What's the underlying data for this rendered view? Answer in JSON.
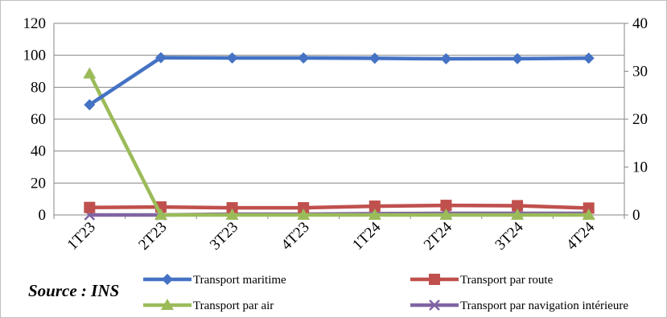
{
  "source_note": "Source : INS",
  "chart_data": {
    "type": "line",
    "title": "",
    "xlabel": "",
    "ylabel": "",
    "categories": [
      "1T23",
      "2T23",
      "3T23",
      "4T23",
      "1T24",
      "2T24",
      "3T24",
      "4T24"
    ],
    "ylim": [
      0,
      120
    ],
    "y_ticks": [
      "0",
      "20",
      "40",
      "60",
      "80",
      "100",
      "120"
    ],
    "y2lim": [
      0,
      40
    ],
    "y2_ticks": [
      "0",
      "10",
      "20",
      "30",
      "40"
    ],
    "grid": "horizontal",
    "legend_position": "bottom",
    "series": [
      {
        "name": "Transport maritime",
        "axis": "left",
        "color": "#4472C4",
        "marker": "diamond",
        "values": [
          69,
          98.5,
          98.3,
          98.3,
          98.1,
          97.8,
          97.9,
          98.2
        ]
      },
      {
        "name": "Transport par route",
        "axis": "left",
        "color": "#C0504D",
        "marker": "square",
        "values": [
          4.7,
          5,
          4.5,
          4.5,
          5.5,
          6,
          5.8,
          4.3
        ]
      },
      {
        "name": "Transport par air",
        "axis": "right",
        "color": "#9BBB59",
        "marker": "triangle",
        "values": [
          29.5,
          0,
          0,
          0,
          0,
          0,
          0,
          0
        ]
      },
      {
        "name": "Transport par navigation intérieure",
        "axis": "left",
        "color": "#8064A2",
        "marker": "x",
        "values": [
          0,
          0,
          0.5,
          0.5,
          0.8,
          1,
          1,
          1
        ]
      }
    ]
  }
}
